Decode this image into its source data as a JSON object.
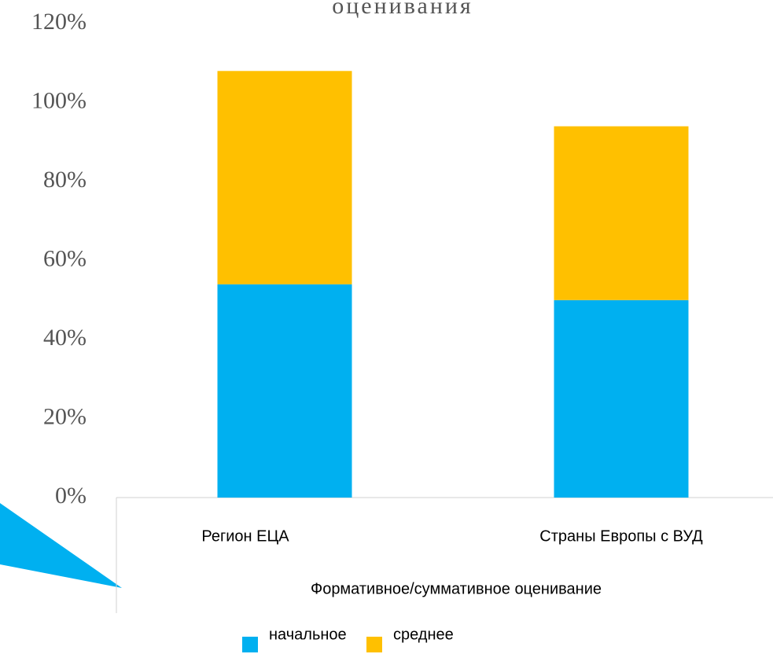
{
  "chart_data": {
    "type": "stacked_bar",
    "title": "оценивания",
    "x_label": "Формативное/суммативное оценивание",
    "categories": [
      "Регион  ЕЦА",
      "Страны  Европы с ВУД"
    ],
    "series": [
      {
        "name": "начальное",
        "color": "#00b0f0",
        "values": [
          54,
          50
        ]
      },
      {
        "name": "среднее",
        "color": "#ffc000",
        "values": [
          54,
          44
        ]
      }
    ],
    "ylim": [
      0,
      120
    ],
    "yticks": [
      {
        "value": 0,
        "label": "0%"
      },
      {
        "value": 20,
        "label": "20%"
      },
      {
        "value": 40,
        "label": "40%"
      },
      {
        "value": 60,
        "label": "60%"
      },
      {
        "value": 80,
        "label": "80%"
      },
      {
        "value": 100,
        "label": "100%"
      },
      {
        "value": 120,
        "label": "120%"
      }
    ],
    "legend": "bottom"
  }
}
